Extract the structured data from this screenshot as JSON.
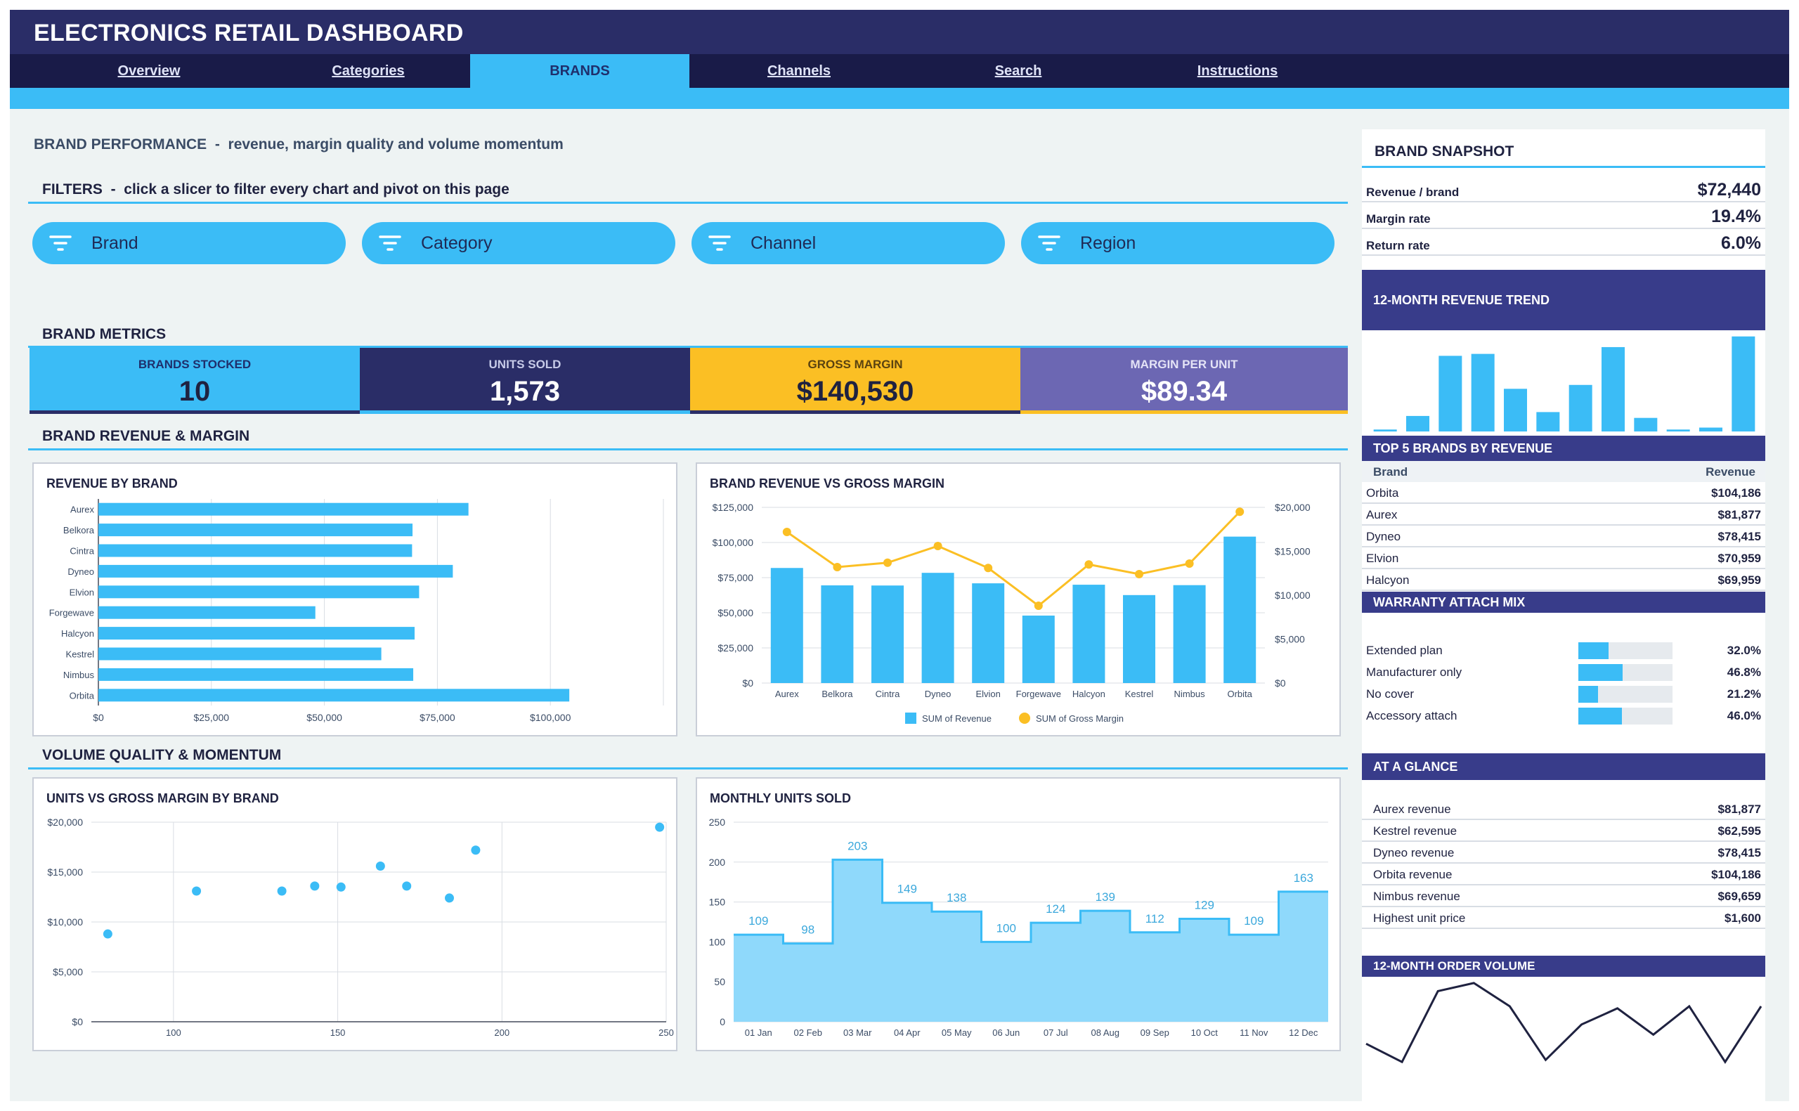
{
  "app_title": "ELECTRONICS RETAIL DASHBOARD",
  "tabs": [
    {
      "label": "Overview",
      "active": false
    },
    {
      "label": "Categories",
      "active": false
    },
    {
      "label": "BRANDS",
      "active": true
    },
    {
      "label": "Channels",
      "active": false
    },
    {
      "label": "Search",
      "active": false
    },
    {
      "label": "Instructions",
      "active": false
    }
  ],
  "page_heading": {
    "title": "BRAND PERFORMANCE",
    "separator": "-",
    "subtitle": "revenue, margin quality and volume momentum"
  },
  "filters": {
    "title": "FILTERS",
    "separator": "-",
    "hint": "click a slicer to filter every chart and pivot on this page",
    "slicers": [
      "Brand",
      "Category",
      "Channel",
      "Region"
    ],
    "icon": "filter-icon"
  },
  "metrics": {
    "title": "BRAND METRICS",
    "items": [
      {
        "label": "BRANDS STOCKED",
        "value": "10"
      },
      {
        "label": "UNITS SOLD",
        "value": "1,573"
      },
      {
        "label": "GROSS MARGIN",
        "value": "$140,530"
      },
      {
        "label": "MARGIN PER UNIT",
        "value": "$89.34"
      }
    ]
  },
  "sections": {
    "revenue_margin": "BRAND REVENUE & MARGIN",
    "volume": "VOLUME QUALITY & MOMENTUM"
  },
  "colors": {
    "navy": "#2a2d67",
    "cyan": "#3bbcf6",
    "amber": "#fbbf24",
    "purple": "#6c67b3",
    "sidebar_header": "#383c8a"
  },
  "charts": {
    "revenue_by_brand": {
      "title": "REVENUE BY BRAND",
      "chart_data": {
        "type": "bar",
        "orientation": "horizontal",
        "categories": [
          "Aurex",
          "Belkora",
          "Cintra",
          "Dyneo",
          "Elvion",
          "Forgewave",
          "Halcyon",
          "Kestrel",
          "Nimbus",
          "Orbita"
        ],
        "values": [
          81877,
          69500,
          69400,
          78415,
          70959,
          48000,
          69959,
          62595,
          69659,
          104186
        ],
        "xlim": [
          0,
          125000
        ],
        "xticks": [
          "$0",
          "$25,000",
          "$50,000",
          "$75,000",
          "$100,000"
        ],
        "grid": true
      }
    },
    "revenue_vs_margin": {
      "title": "BRAND REVENUE VS GROSS MARGIN",
      "chart_data": {
        "type": "bar+line",
        "categories": [
          "Aurex",
          "Belkora",
          "Cintra",
          "Dyneo",
          "Elvion",
          "Forgewave",
          "Halcyon",
          "Kestrel",
          "Nimbus",
          "Orbita"
        ],
        "series": [
          {
            "name": "SUM of Revenue",
            "type": "bar",
            "axis": "left",
            "values": [
              81877,
              69500,
              69400,
              78415,
              70959,
              48000,
              69959,
              62595,
              69659,
              104186
            ]
          },
          {
            "name": "SUM of Gross Margin",
            "type": "line",
            "axis": "right",
            "values": [
              17200,
              13200,
              13700,
              15600,
              13100,
              8800,
              13500,
              12400,
              13600,
              19500
            ]
          }
        ],
        "ylim_left": [
          0,
          125000
        ],
        "ylim_right": [
          0,
          20000
        ],
        "yticks_left": [
          "$0",
          "$25,000",
          "$50,000",
          "$75,000",
          "$100,000",
          "$125,000"
        ],
        "yticks_right": [
          "$0",
          "$5,000",
          "$10,000",
          "$15,000",
          "$20,000"
        ],
        "legend": "bottom",
        "grid": true
      }
    },
    "units_vs_margin": {
      "title": "UNITS VS GROSS MARGIN BY BRAND",
      "chart_data": {
        "type": "scatter",
        "points": [
          {
            "x": 80,
            "y": 8800
          },
          {
            "x": 107,
            "y": 13100
          },
          {
            "x": 133,
            "y": 13100
          },
          {
            "x": 143,
            "y": 13600
          },
          {
            "x": 151,
            "y": 13500
          },
          {
            "x": 163,
            "y": 15600
          },
          {
            "x": 171,
            "y": 13600
          },
          {
            "x": 184,
            "y": 12400
          },
          {
            "x": 192,
            "y": 17200
          },
          {
            "x": 248,
            "y": 19500
          }
        ],
        "xlim": [
          75,
          250
        ],
        "ylim": [
          0,
          20000
        ],
        "xticks": [
          "100",
          "150",
          "200",
          "250"
        ],
        "yticks": [
          "$0",
          "$5,000",
          "$10,000",
          "$15,000",
          "$20,000"
        ],
        "grid": true
      }
    },
    "monthly_units": {
      "title": "MONTHLY UNITS SOLD",
      "chart_data": {
        "type": "area",
        "step": true,
        "categories": [
          "01 Jan",
          "02 Feb",
          "03 Mar",
          "04 Apr",
          "05 May",
          "06 Jun",
          "07 Jul",
          "08 Aug",
          "09 Sep",
          "10 Oct",
          "11 Nov",
          "12 Dec"
        ],
        "values": [
          109,
          98,
          203,
          149,
          138,
          100,
          124,
          139,
          112,
          129,
          109,
          163
        ],
        "value_labels": [
          "109",
          "98",
          "203",
          "149",
          "138",
          "100",
          "124",
          "139",
          "112",
          "129",
          "109",
          "163"
        ],
        "ylim": [
          0,
          250
        ],
        "yticks": [
          "0",
          "50",
          "100",
          "150",
          "200",
          "250"
        ],
        "grid": true
      }
    }
  },
  "sidebar": {
    "snapshot": {
      "title": "BRAND SNAPSHOT",
      "rows": [
        {
          "label": "Revenue / brand",
          "value": "$72,440"
        },
        {
          "label": "Margin rate",
          "value": "19.4%"
        },
        {
          "label": "Return rate",
          "value": "6.0%"
        }
      ]
    },
    "trend": {
      "title": "12-MONTH REVENUE TREND",
      "chart_data": {
        "type": "bar",
        "values": [
          2,
          16,
          78,
          80,
          44,
          20,
          48,
          87,
          14,
          2,
          4,
          98
        ],
        "ylim": [
          0,
          100
        ]
      }
    },
    "top5": {
      "title": "TOP 5 BRANDS BY REVENUE",
      "columns": [
        "Brand",
        "Revenue"
      ],
      "rows": [
        {
          "brand": "Orbita",
          "revenue": "$104,186"
        },
        {
          "brand": "Aurex",
          "revenue": "$81,877"
        },
        {
          "brand": "Dyneo",
          "revenue": "$78,415"
        },
        {
          "brand": "Elvion",
          "revenue": "$70,959"
        },
        {
          "brand": "Halcyon",
          "revenue": "$69,959"
        }
      ]
    },
    "warranty": {
      "title": "WARRANTY ATTACH MIX",
      "rows": [
        {
          "label": "Extended plan",
          "value": "32.0%",
          "fraction": 0.32
        },
        {
          "label": "Manufacturer only",
          "value": "46.8%",
          "fraction": 0.468
        },
        {
          "label": "No cover",
          "value": "21.2%",
          "fraction": 0.212
        },
        {
          "label": "Accessory attach",
          "value": "46.0%",
          "fraction": 0.46
        }
      ]
    },
    "glance": {
      "title": "AT A GLANCE",
      "rows": [
        {
          "label": "Aurex revenue",
          "value": "$81,877"
        },
        {
          "label": "Kestrel revenue",
          "value": "$62,595"
        },
        {
          "label": "Dyneo revenue",
          "value": "$78,415"
        },
        {
          "label": "Orbita revenue",
          "value": "$104,186"
        },
        {
          "label": "Nimbus revenue",
          "value": "$69,659"
        },
        {
          "label": "Highest unit price",
          "value": "$1,600"
        }
      ]
    },
    "order_volume": {
      "title": "12-MONTH ORDER VOLUME",
      "chart_data": {
        "type": "line",
        "values": [
          38,
          20,
          90,
          98,
          75,
          22,
          57,
          73,
          47,
          75,
          20,
          75
        ],
        "ylim": [
          0,
          100
        ]
      }
    }
  }
}
